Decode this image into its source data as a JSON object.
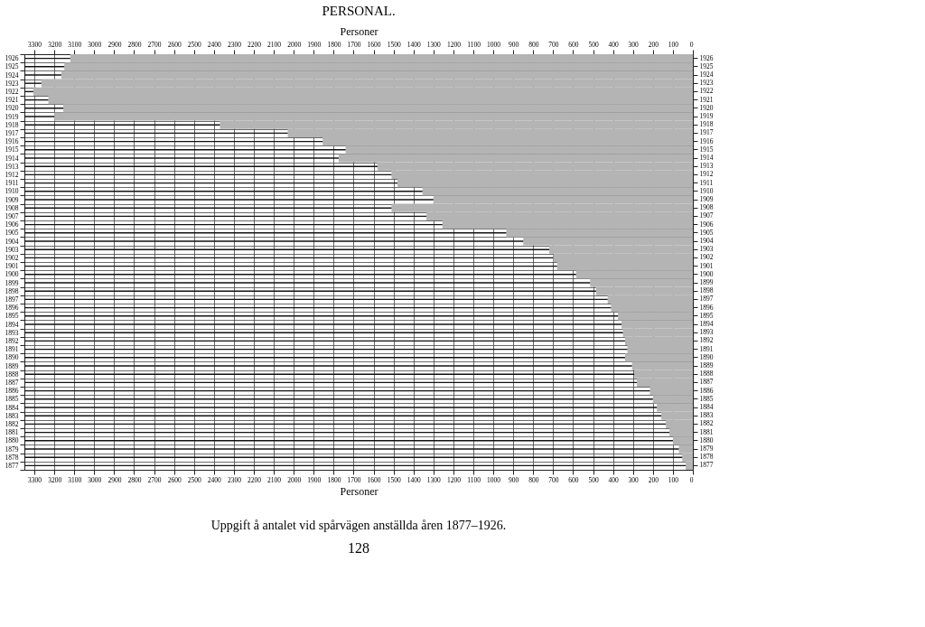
{
  "chart_data": {
    "type": "bar",
    "orientation": "horizontal",
    "title": "PERSONAL.",
    "xlabel": "Personer",
    "x2label": "Personer",
    "annotations": [
      "Uppgift å antalet vid spårvägen anställda åren 1877–1926.",
      "128"
    ],
    "categories": [
      "1926",
      "1925",
      "1924",
      "1923",
      "1922",
      "1921",
      "1920",
      "1919",
      "1918",
      "1917",
      "1916",
      "1915",
      "1914",
      "1913",
      "1912",
      "1911",
      "1910",
      "1909",
      "1908",
      "1907",
      "1906",
      "1905",
      "1904",
      "1903",
      "1902",
      "1901",
      "1900",
      "1899",
      "1898",
      "1897",
      "1896",
      "1895",
      "1894",
      "1893",
      "1892",
      "1891",
      "1890",
      "1889",
      "1888",
      "1887",
      "1886",
      "1885",
      "1884",
      "1883",
      "1882",
      "1881",
      "1880",
      "1879",
      "1878",
      "1877"
    ],
    "values": [
      3120,
      3150,
      3165,
      3265,
      3305,
      3230,
      3155,
      3200,
      2370,
      2030,
      1855,
      1740,
      1775,
      1580,
      1510,
      1480,
      1355,
      1300,
      1510,
      1335,
      1255,
      935,
      850,
      720,
      700,
      680,
      585,
      515,
      485,
      427,
      410,
      375,
      357,
      350,
      340,
      328,
      340,
      305,
      293,
      280,
      215,
      200,
      180,
      158,
      135,
      117,
      100,
      70,
      53,
      36
    ],
    "color": "#b4b4b4",
    "xlim": [
      3350,
      0
    ],
    "xticks": [
      0,
      100,
      200,
      300,
      400,
      500,
      600,
      700,
      800,
      900,
      1000,
      1100,
      1200,
      1300,
      1400,
      1500,
      1600,
      1700,
      1800,
      1900,
      2000,
      2100,
      2200,
      2300,
      2400,
      2500,
      2600,
      2700,
      2800,
      2900,
      3000,
      3100,
      3200,
      3300
    ],
    "x2lim": [
      3350,
      0
    ],
    "x2ticks": [
      0,
      100,
      200,
      300,
      400,
      500,
      600,
      700,
      800,
      900,
      1000,
      1100,
      1200,
      1300,
      1400,
      1500,
      1600,
      1700,
      1800,
      1900,
      2000,
      2100,
      2200,
      2300,
      2400,
      2500,
      2600,
      2700,
      2800,
      2900,
      3000,
      3100,
      3200,
      3300
    ],
    "grid": true
  }
}
